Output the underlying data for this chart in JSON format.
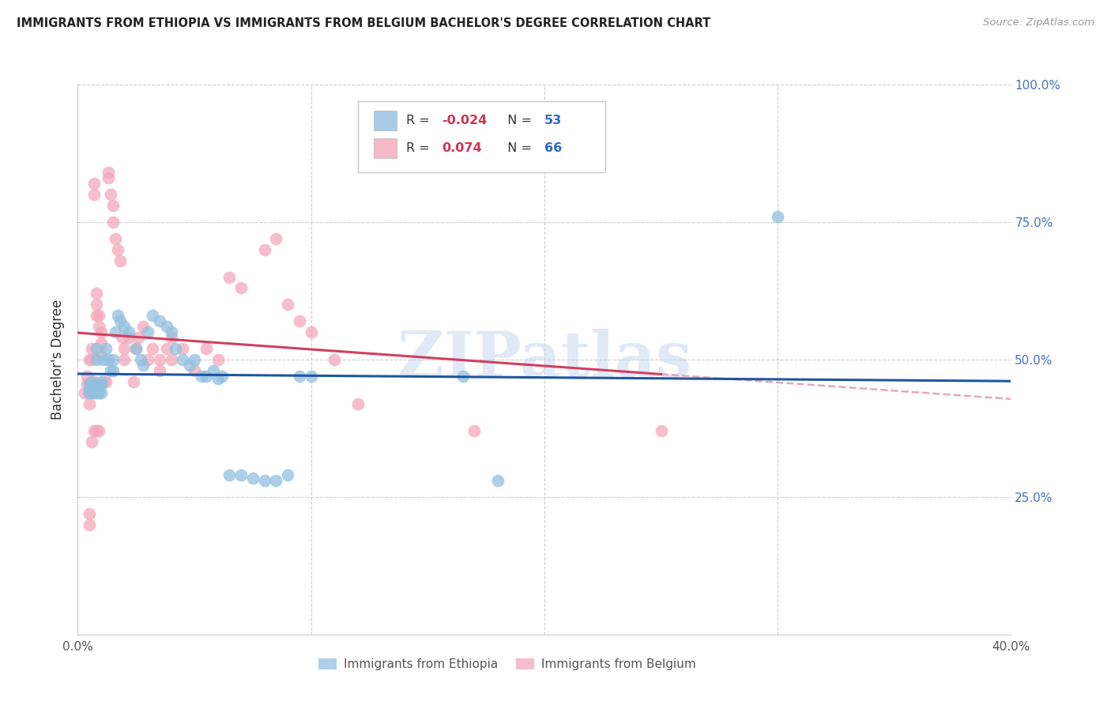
{
  "title": "IMMIGRANTS FROM ETHIOPIA VS IMMIGRANTS FROM BELGIUM BACHELOR'S DEGREE CORRELATION CHART",
  "source": "Source: ZipAtlas.com",
  "ylabel": "Bachelor's Degree",
  "xlim": [
    0.0,
    0.4
  ],
  "ylim": [
    0.0,
    1.0
  ],
  "ethiopia_color": "#92c0e0",
  "belgium_color": "#f4a8bc",
  "ethiopia_R": "-0.024",
  "ethiopia_N": "53",
  "belgium_R": "0.074",
  "belgium_N": "66",
  "trend_ethiopia_color": "#1e56a0",
  "trend_belgium_color": "#d04060",
  "trend_belgium_ext_color": "#e0a0b0",
  "r_color": "#cc3355",
  "n_color": "#3366cc",
  "right_axis_color": "#4472c4",
  "watermark": "ZIPatlas",
  "ethiopia_x": [
    0.005,
    0.005,
    0.005,
    0.006,
    0.007,
    0.007,
    0.008,
    0.008,
    0.008,
    0.009,
    0.009,
    0.01,
    0.01,
    0.01,
    0.011,
    0.012,
    0.013,
    0.014,
    0.015,
    0.015,
    0.016,
    0.017,
    0.018,
    0.02,
    0.022,
    0.025,
    0.027,
    0.028,
    0.03,
    0.032,
    0.035,
    0.038,
    0.04,
    0.042,
    0.045,
    0.048,
    0.05,
    0.053,
    0.055,
    0.058,
    0.06,
    0.062,
    0.065,
    0.07,
    0.075,
    0.08,
    0.085,
    0.09,
    0.095,
    0.1,
    0.165,
    0.18,
    0.3
  ],
  "ethiopia_y": [
    0.445,
    0.455,
    0.44,
    0.46,
    0.44,
    0.455,
    0.52,
    0.5,
    0.44,
    0.455,
    0.44,
    0.46,
    0.44,
    0.455,
    0.5,
    0.52,
    0.5,
    0.48,
    0.5,
    0.48,
    0.55,
    0.58,
    0.57,
    0.56,
    0.55,
    0.52,
    0.5,
    0.49,
    0.55,
    0.58,
    0.57,
    0.56,
    0.55,
    0.52,
    0.5,
    0.49,
    0.5,
    0.47,
    0.47,
    0.48,
    0.465,
    0.47,
    0.29,
    0.29,
    0.285,
    0.28,
    0.28,
    0.29,
    0.47,
    0.47,
    0.47,
    0.28,
    0.76
  ],
  "belgium_x": [
    0.003,
    0.004,
    0.004,
    0.005,
    0.005,
    0.005,
    0.005,
    0.006,
    0.006,
    0.007,
    0.007,
    0.007,
    0.008,
    0.008,
    0.008,
    0.009,
    0.009,
    0.01,
    0.01,
    0.01,
    0.011,
    0.012,
    0.013,
    0.013,
    0.014,
    0.015,
    0.015,
    0.016,
    0.017,
    0.018,
    0.019,
    0.02,
    0.02,
    0.022,
    0.024,
    0.025,
    0.026,
    0.028,
    0.03,
    0.032,
    0.035,
    0.035,
    0.038,
    0.04,
    0.04,
    0.045,
    0.05,
    0.055,
    0.06,
    0.065,
    0.07,
    0.08,
    0.085,
    0.09,
    0.095,
    0.1,
    0.11,
    0.12,
    0.17,
    0.25,
    0.005,
    0.005,
    0.006,
    0.007,
    0.008,
    0.009
  ],
  "belgium_y": [
    0.44,
    0.455,
    0.47,
    0.44,
    0.455,
    0.42,
    0.5,
    0.52,
    0.5,
    0.8,
    0.82,
    0.46,
    0.58,
    0.6,
    0.62,
    0.56,
    0.58,
    0.55,
    0.53,
    0.51,
    0.46,
    0.46,
    0.83,
    0.84,
    0.8,
    0.78,
    0.75,
    0.72,
    0.7,
    0.68,
    0.54,
    0.52,
    0.5,
    0.54,
    0.46,
    0.52,
    0.54,
    0.56,
    0.5,
    0.52,
    0.5,
    0.48,
    0.52,
    0.5,
    0.54,
    0.52,
    0.48,
    0.52,
    0.5,
    0.65,
    0.63,
    0.7,
    0.72,
    0.6,
    0.57,
    0.55,
    0.5,
    0.42,
    0.37,
    0.37,
    0.22,
    0.2,
    0.35,
    0.37,
    0.37,
    0.37
  ]
}
